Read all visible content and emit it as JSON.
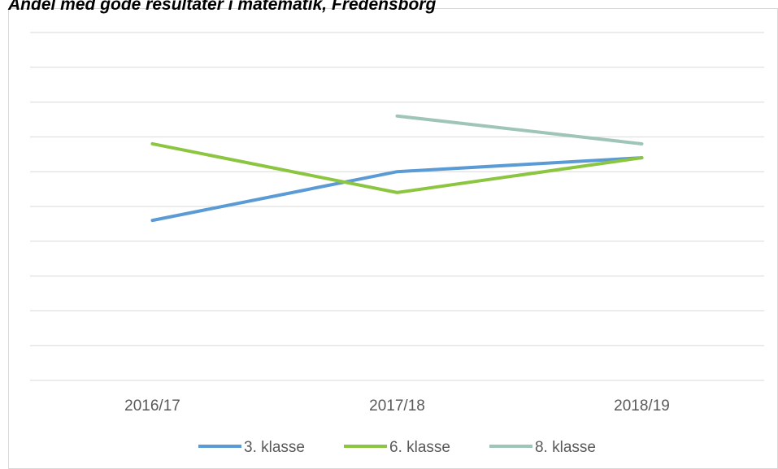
{
  "chart_data": {
    "type": "line",
    "title": "Andel med gode resultater i matematik, Fredensborg",
    "categories": [
      "2016/17",
      "2017/18",
      "2018/19"
    ],
    "series": [
      {
        "name": "3. klasse",
        "color": "#5b9bd5",
        "values": [
          46,
          60,
          64
        ]
      },
      {
        "name": "6. klasse",
        "color": "#8cc540",
        "values": [
          68,
          54,
          64
        ]
      },
      {
        "name": "8. klasse",
        "color": "#9fc5b8",
        "values": [
          null,
          76,
          68
        ]
      }
    ],
    "ylim": [
      0,
      100
    ],
    "yticks": [
      0,
      10,
      20,
      30,
      40,
      50,
      60,
      70,
      80,
      90,
      100
    ],
    "grid": true,
    "legend": "bottom"
  }
}
